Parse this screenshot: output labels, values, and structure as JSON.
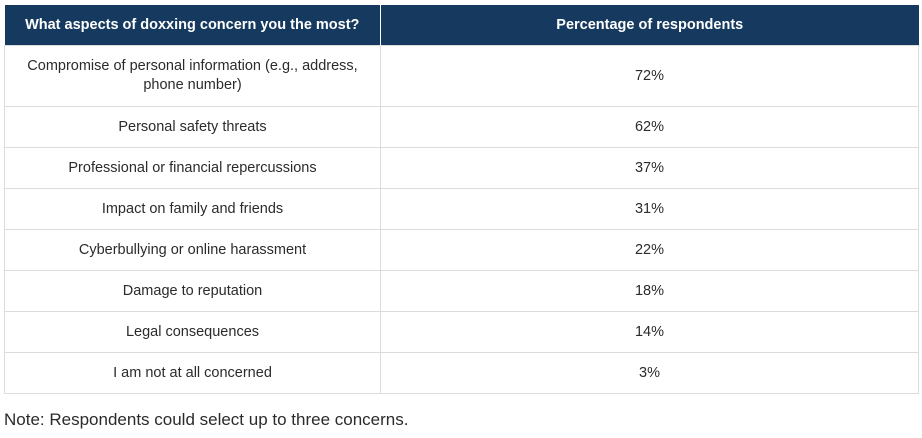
{
  "table": {
    "headers": [
      "What aspects of doxxing concern you the most?",
      "Percentage of respondents"
    ],
    "rows": [
      {
        "concern": "Compromise of personal information (e.g., address, phone number)",
        "percent": "72%"
      },
      {
        "concern": "Personal safety threats",
        "percent": "62%"
      },
      {
        "concern": "Professional or financial repercussions",
        "percent": "37%"
      },
      {
        "concern": "Impact on family and friends",
        "percent": "31%"
      },
      {
        "concern": "Cyberbullying or online harassment",
        "percent": "22%"
      },
      {
        "concern": "Damage to reputation",
        "percent": "18%"
      },
      {
        "concern": "Legal consequences",
        "percent": "14%"
      },
      {
        "concern": "I am not at all concerned",
        "percent": "3%"
      }
    ]
  },
  "note": "Note: Respondents could select up to three concerns.",
  "colors": {
    "header_bg": "#163a5f",
    "header_text": "#ffffff",
    "grid": "#dcdcdc"
  }
}
